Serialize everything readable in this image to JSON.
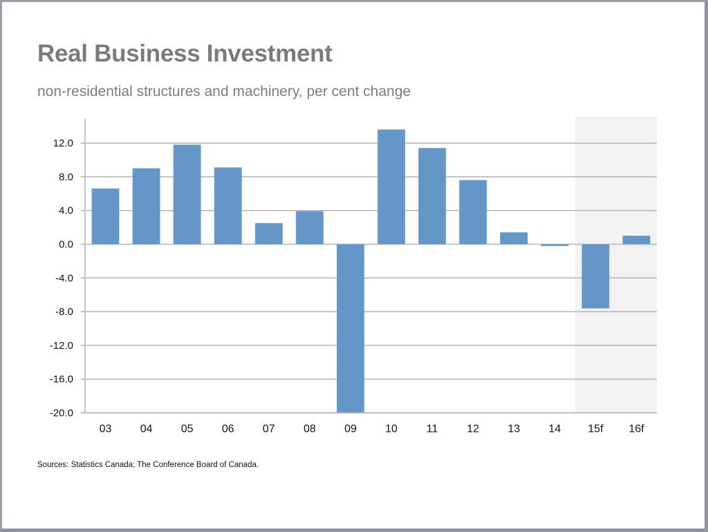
{
  "chart_data": {
    "type": "bar",
    "title": "Real Business Investment",
    "subtitle": "non-residential structures and machinery, per cent change",
    "xlabel": "",
    "ylabel": "",
    "categories": [
      "03",
      "04",
      "05",
      "06",
      "07",
      "08",
      "09",
      "10",
      "11",
      "12",
      "13",
      "14",
      "15f",
      "16f"
    ],
    "values": [
      6.6,
      9.0,
      11.8,
      9.1,
      2.5,
      3.9,
      -20.0,
      13.6,
      11.4,
      7.6,
      1.4,
      -0.2,
      -7.6,
      1.0
    ],
    "ylim": [
      -20,
      15
    ],
    "yticks": [
      12,
      8,
      4,
      0,
      -4,
      -8,
      -12,
      -16,
      -20
    ],
    "ytick_labels": [
      "12.0",
      "8.0",
      "4.0",
      "0.0",
      "-4.0",
      "-8.0",
      "-12.0",
      "-16.0",
      "-20.0"
    ],
    "forecast_categories": [
      "15f",
      "16f"
    ],
    "grid": true,
    "legend": "none",
    "colors": {
      "bar": "#6497c8",
      "grid": "#b3b3b3",
      "forecast_shade": "#f2f2f2",
      "title": "#7b7b7b"
    }
  },
  "footer": {
    "source": "Sources: Statistics Canada; The Conference Board of Canada."
  }
}
